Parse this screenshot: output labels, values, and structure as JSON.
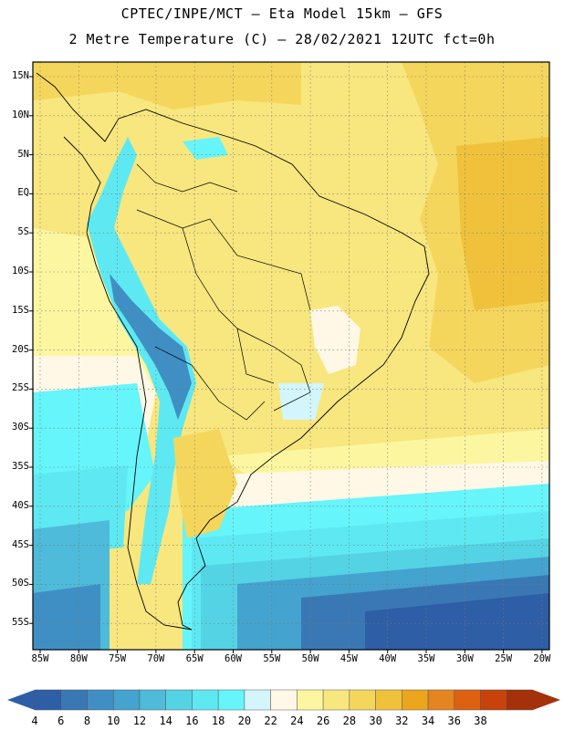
{
  "header": {
    "line1": "CPTEC/INPE/MCT –  Eta Model 15km – GFS",
    "line2": "2 Metre Temperature (C) – 28/02/2021 12UTC fct=0h"
  },
  "map": {
    "lat_labels": [
      "15N",
      "10N",
      "5N",
      "EQ",
      "5S",
      "10S",
      "15S",
      "20S",
      "25S",
      "30S",
      "35S",
      "40S",
      "45S",
      "50S",
      "55S"
    ],
    "lon_labels": [
      "85W",
      "80W",
      "75W",
      "70W",
      "65W",
      "60W",
      "55W",
      "50W",
      "45W",
      "40W",
      "35W",
      "30W",
      "25W",
      "20W"
    ]
  },
  "colorbar": {
    "labels": [
      "4",
      "6",
      "8",
      "10",
      "12",
      "14",
      "16",
      "18",
      "20",
      "22",
      "24",
      "26",
      "28",
      "30",
      "32",
      "34",
      "36",
      "38"
    ],
    "colors": [
      "#2e5ea6",
      "#3978b5",
      "#3f8fc4",
      "#44a3cf",
      "#4dbbd9",
      "#54d3e5",
      "#5ee9f2",
      "#66f5fb",
      "#d2f6fb",
      "#fff8e6",
      "#fdf6a0",
      "#f8e67e",
      "#f5d65c",
      "#f0c23c",
      "#eca61e",
      "#e58420",
      "#dc6212",
      "#c8420c",
      "#a63009"
    ],
    "low_color": "#2e5ea6",
    "high_color": "#a63009"
  }
}
